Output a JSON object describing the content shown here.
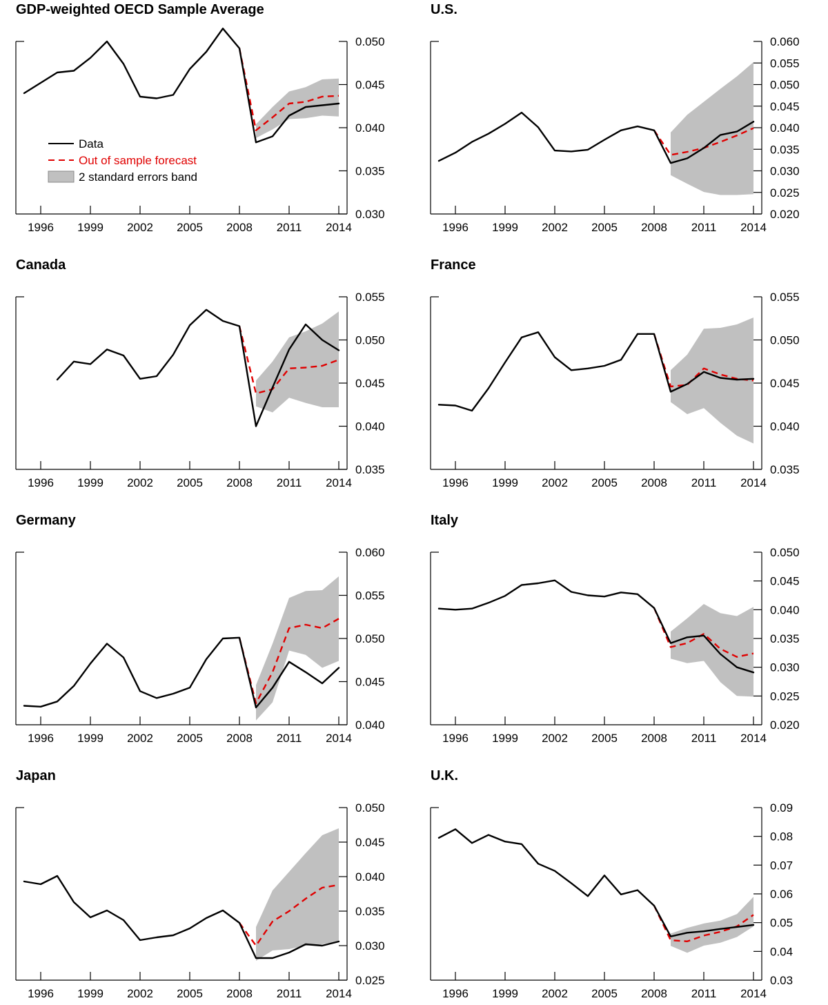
{
  "colors": {
    "data": "#000000",
    "forecast": "#e00000",
    "band": "#c0c0c0"
  },
  "legend": {
    "data_label": "Data",
    "forecast_label": "Out of sample forecast",
    "band_label": "2 standard errors band"
  },
  "chart_data": [
    {
      "type": "line",
      "title": "GDP-weighted OECD Sample Average",
      "x_ticks": [
        1996,
        1999,
        2002,
        2005,
        2008,
        2011,
        2014
      ],
      "y_ticks": [
        "0.030",
        "0.035",
        "0.040",
        "0.045",
        "0.050"
      ],
      "ylim": [
        0.03,
        0.05
      ],
      "xlim": [
        1995,
        2014
      ],
      "data": {
        "x": [
          1995,
          1996,
          1997,
          1998,
          1999,
          2000,
          2001,
          2002,
          2003,
          2004,
          2005,
          2006,
          2007,
          2008,
          2009,
          2010,
          2011,
          2012,
          2013,
          2014
        ],
        "y": [
          0.044,
          0.0452,
          0.0464,
          0.0466,
          0.0481,
          0.05,
          0.0474,
          0.0436,
          0.0434,
          0.0438,
          0.0468,
          0.0488,
          0.0515,
          0.0492,
          0.0383,
          0.039,
          0.0414,
          0.0424,
          0.0426,
          0.0428
        ]
      },
      "forecast": {
        "x": [
          2008,
          2009,
          2010,
          2011,
          2012,
          2013,
          2014
        ],
        "y": [
          0.0492,
          0.0397,
          0.0412,
          0.0428,
          0.043,
          0.0436,
          0.0437
        ]
      },
      "band": {
        "x": [
          2009,
          2010,
          2011,
          2012,
          2013,
          2014
        ],
        "upper": [
          0.0404,
          0.0424,
          0.0442,
          0.0447,
          0.0456,
          0.0457
        ],
        "lower": [
          0.0388,
          0.0398,
          0.041,
          0.0411,
          0.0414,
          0.0413
        ]
      },
      "legend_shown": true
    },
    {
      "type": "line",
      "title": "U.S.",
      "x_ticks": [
        1996,
        1999,
        2002,
        2005,
        2008,
        2011,
        2014
      ],
      "y_ticks": [
        "0.020",
        "0.025",
        "0.030",
        "0.035",
        "0.040",
        "0.045",
        "0.050",
        "0.055",
        "0.060"
      ],
      "ylim": [
        0.02,
        0.06
      ],
      "xlim": [
        1995,
        2014
      ],
      "data": {
        "x": [
          1995,
          1996,
          1997,
          1998,
          1999,
          2000,
          2001,
          2002,
          2003,
          2004,
          2005,
          2006,
          2007,
          2008,
          2009,
          2010,
          2011,
          2012,
          2013,
          2014
        ],
        "y": [
          0.0323,
          0.0342,
          0.0367,
          0.0386,
          0.0409,
          0.0435,
          0.0401,
          0.0347,
          0.0345,
          0.0349,
          0.0372,
          0.0394,
          0.0403,
          0.0394,
          0.0318,
          0.0329,
          0.0353,
          0.0383,
          0.0391,
          0.0414
        ]
      },
      "forecast": {
        "x": [
          2008,
          2009,
          2010,
          2011,
          2012,
          2013,
          2014
        ],
        "y": [
          0.0394,
          0.0337,
          0.0344,
          0.0353,
          0.0367,
          0.0382,
          0.0399
        ]
      },
      "band": {
        "x": [
          2009,
          2010,
          2011,
          2012,
          2013,
          2014
        ],
        "upper": [
          0.0389,
          0.043,
          0.046,
          0.049,
          0.0519,
          0.0552
        ],
        "lower": [
          0.029,
          0.027,
          0.0251,
          0.0244,
          0.0244,
          0.0246
        ]
      },
      "legend_shown": false
    },
    {
      "type": "line",
      "title": "Canada",
      "x_ticks": [
        1996,
        1999,
        2002,
        2005,
        2008,
        2011,
        2014
      ],
      "y_ticks": [
        "0.035",
        "0.040",
        "0.045",
        "0.050",
        "0.055"
      ],
      "ylim": [
        0.035,
        0.055
      ],
      "xlim": [
        1995,
        2014
      ],
      "data": {
        "x": [
          1997,
          1998,
          1999,
          2000,
          2001,
          2002,
          2003,
          2004,
          2005,
          2006,
          2007,
          2008,
          2009,
          2010,
          2011,
          2012,
          2013,
          2014
        ],
        "y": [
          0.0454,
          0.0475,
          0.0472,
          0.0489,
          0.0482,
          0.0455,
          0.0458,
          0.0483,
          0.0517,
          0.0535,
          0.0522,
          0.0516,
          0.04,
          0.0445,
          0.0489,
          0.0518,
          0.05,
          0.0488
        ]
      },
      "forecast": {
        "x": [
          2008,
          2009,
          2010,
          2011,
          2012,
          2013,
          2014
        ],
        "y": [
          0.0516,
          0.0438,
          0.0443,
          0.0467,
          0.0468,
          0.047,
          0.0477
        ]
      },
      "band": {
        "x": [
          2009,
          2010,
          2011,
          2012,
          2013,
          2014
        ],
        "upper": [
          0.0453,
          0.0475,
          0.0503,
          0.051,
          0.0519,
          0.0533
        ],
        "lower": [
          0.0423,
          0.0416,
          0.0433,
          0.0427,
          0.0422,
          0.0422
        ]
      },
      "legend_shown": false
    },
    {
      "type": "line",
      "title": "France",
      "x_ticks": [
        1996,
        1999,
        2002,
        2005,
        2008,
        2011,
        2014
      ],
      "y_ticks": [
        "0.035",
        "0.040",
        "0.045",
        "0.050",
        "0.055"
      ],
      "ylim": [
        0.035,
        0.055
      ],
      "xlim": [
        1995,
        2014
      ],
      "data": {
        "x": [
          1995,
          1996,
          1997,
          1998,
          1999,
          2000,
          2001,
          2002,
          2003,
          2004,
          2005,
          2006,
          2007,
          2008,
          2009,
          2010,
          2011,
          2012,
          2013,
          2014
        ],
        "y": [
          0.0425,
          0.0424,
          0.0418,
          0.0444,
          0.0474,
          0.0503,
          0.0509,
          0.048,
          0.0465,
          0.0467,
          0.047,
          0.0477,
          0.0507,
          0.0507,
          0.044,
          0.0449,
          0.0463,
          0.0456,
          0.0454,
          0.0455
        ]
      },
      "forecast": {
        "x": [
          2008,
          2009,
          2010,
          2011,
          2012,
          2013,
          2014
        ],
        "y": [
          0.0507,
          0.0446,
          0.0448,
          0.0467,
          0.046,
          0.0455,
          0.0453
        ]
      },
      "band": {
        "x": [
          2009,
          2010,
          2011,
          2012,
          2013,
          2014
        ],
        "upper": [
          0.0465,
          0.0483,
          0.0513,
          0.0514,
          0.0518,
          0.0526
        ],
        "lower": [
          0.0428,
          0.0414,
          0.0421,
          0.0404,
          0.0389,
          0.038
        ]
      },
      "legend_shown": false
    },
    {
      "type": "line",
      "title": "Germany",
      "x_ticks": [
        1996,
        1999,
        2002,
        2005,
        2008,
        2011,
        2014
      ],
      "y_ticks": [
        "0.040",
        "0.045",
        "0.050",
        "0.055",
        "0.060"
      ],
      "ylim": [
        0.04,
        0.06
      ],
      "xlim": [
        1995,
        2014
      ],
      "data": {
        "x": [
          1995,
          1996,
          1997,
          1998,
          1999,
          2000,
          2001,
          2002,
          2003,
          2004,
          2005,
          2006,
          2007,
          2008,
          2009,
          2010,
          2011,
          2012,
          2013,
          2014
        ],
        "y": [
          0.0422,
          0.0421,
          0.0427,
          0.0445,
          0.0471,
          0.0494,
          0.0478,
          0.0439,
          0.0431,
          0.0436,
          0.0443,
          0.0476,
          0.05,
          0.0501,
          0.042,
          0.0443,
          0.0473,
          0.0461,
          0.0448,
          0.0466
        ]
      },
      "forecast": {
        "x": [
          2008,
          2009,
          2010,
          2011,
          2012,
          2013,
          2014
        ],
        "y": [
          0.0501,
          0.0425,
          0.0461,
          0.0512,
          0.0516,
          0.0512,
          0.0523
        ]
      },
      "band": {
        "x": [
          2009,
          2010,
          2011,
          2012,
          2013,
          2014
        ],
        "upper": [
          0.0446,
          0.0494,
          0.0547,
          0.0555,
          0.0556,
          0.0572
        ],
        "lower": [
          0.0405,
          0.0426,
          0.0486,
          0.0481,
          0.0466,
          0.0474
        ]
      },
      "legend_shown": false
    },
    {
      "type": "line",
      "title": "Italy",
      "x_ticks": [
        1996,
        1999,
        2002,
        2005,
        2008,
        2011,
        2014
      ],
      "y_ticks": [
        "0.020",
        "0.025",
        "0.030",
        "0.035",
        "0.040",
        "0.045",
        "0.050"
      ],
      "ylim": [
        0.02,
        0.05
      ],
      "xlim": [
        1995,
        2014
      ],
      "data": {
        "x": [
          1995,
          1996,
          1997,
          1998,
          1999,
          2000,
          2001,
          2002,
          2003,
          2004,
          2005,
          2006,
          2007,
          2008,
          2009,
          2010,
          2011,
          2012,
          2013,
          2014
        ],
        "y": [
          0.0402,
          0.04,
          0.0402,
          0.0412,
          0.0424,
          0.0443,
          0.0446,
          0.0451,
          0.0431,
          0.0425,
          0.0423,
          0.043,
          0.0427,
          0.0403,
          0.0342,
          0.0352,
          0.0355,
          0.0323,
          0.03,
          0.0291
        ]
      },
      "forecast": {
        "x": [
          2008,
          2009,
          2010,
          2011,
          2012,
          2013,
          2014
        ],
        "y": [
          0.0403,
          0.0335,
          0.0342,
          0.0358,
          0.0332,
          0.0318,
          0.0324
        ]
      },
      "band": {
        "x": [
          2009,
          2010,
          2011,
          2012,
          2013,
          2014
        ],
        "upper": [
          0.0362,
          0.0385,
          0.041,
          0.0394,
          0.0389,
          0.0405
        ],
        "lower": [
          0.0315,
          0.0307,
          0.0311,
          0.0274,
          0.025,
          0.0249
        ]
      },
      "legend_shown": false
    },
    {
      "type": "line",
      "title": "Japan",
      "x_ticks": [
        1996,
        1999,
        2002,
        2005,
        2008,
        2011,
        2014
      ],
      "y_ticks": [
        "0.025",
        "0.030",
        "0.035",
        "0.040",
        "0.045",
        "0.050"
      ],
      "ylim": [
        0.025,
        0.05
      ],
      "xlim": [
        1995,
        2014
      ],
      "data": {
        "x": [
          1995,
          1996,
          1997,
          1998,
          1999,
          2000,
          2001,
          2002,
          2003,
          2004,
          2005,
          2006,
          2007,
          2008,
          2009,
          2010,
          2011,
          2012,
          2013,
          2014
        ],
        "y": [
          0.0393,
          0.0389,
          0.0401,
          0.0363,
          0.0341,
          0.0351,
          0.0337,
          0.0308,
          0.0312,
          0.0315,
          0.0325,
          0.034,
          0.0351,
          0.0333,
          0.0282,
          0.0282,
          0.029,
          0.0302,
          0.03,
          0.0306
        ]
      },
      "forecast": {
        "x": [
          2008,
          2009,
          2010,
          2011,
          2012,
          2013,
          2014
        ],
        "y": [
          0.0333,
          0.03,
          0.0335,
          0.035,
          0.0368,
          0.0384,
          0.0388
        ]
      },
      "band": {
        "x": [
          2009,
          2010,
          2011,
          2012,
          2013,
          2014
        ],
        "upper": [
          0.0327,
          0.038,
          0.0407,
          0.0434,
          0.046,
          0.047
        ],
        "lower": [
          0.0278,
          0.0293,
          0.0295,
          0.03,
          0.0302,
          0.0306
        ]
      },
      "legend_shown": false
    },
    {
      "type": "line",
      "title": "U.K.",
      "x_ticks": [
        1996,
        1999,
        2002,
        2005,
        2008,
        2011,
        2014
      ],
      "y_ticks": [
        "0.03",
        "0.04",
        "0.05",
        "0.06",
        "0.07",
        "0.08",
        "0.09"
      ],
      "ylim": [
        0.03,
        0.09
      ],
      "xlim": [
        1995,
        2014
      ],
      "data": {
        "x": [
          1995,
          1996,
          1997,
          1998,
          1999,
          2000,
          2001,
          2002,
          2003,
          2004,
          2005,
          2006,
          2007,
          2008,
          2009,
          2010,
          2011,
          2012,
          2013,
          2014
        ],
        "y": [
          0.0795,
          0.0825,
          0.0777,
          0.0805,
          0.0782,
          0.0773,
          0.0705,
          0.068,
          0.0637,
          0.0592,
          0.0664,
          0.0598,
          0.0613,
          0.0559,
          0.0452,
          0.0465,
          0.047,
          0.0478,
          0.0485,
          0.0492
        ]
      },
      "forecast": {
        "x": [
          2008,
          2009,
          2010,
          2011,
          2012,
          2013,
          2014
        ],
        "y": [
          0.0559,
          0.0439,
          0.0435,
          0.0455,
          0.0468,
          0.0487,
          0.0527
        ]
      },
      "band": {
        "x": [
          2009,
          2010,
          2011,
          2012,
          2013,
          2014
        ],
        "upper": [
          0.0462,
          0.0482,
          0.0497,
          0.0507,
          0.053,
          0.059
        ],
        "lower": [
          0.0419,
          0.0395,
          0.042,
          0.043,
          0.045,
          0.0487
        ]
      },
      "legend_shown": false
    }
  ]
}
